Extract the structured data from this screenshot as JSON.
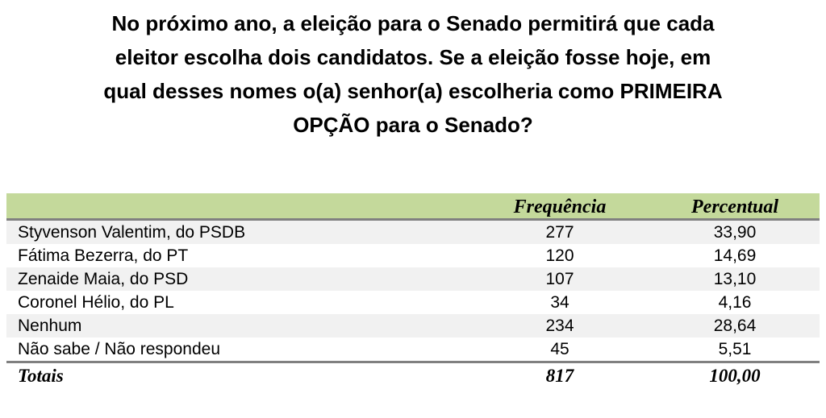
{
  "title_lines": [
    "No próximo ano, a eleição para o Senado permitirá que cada",
    "eleitor escolha dois candidatos. Se a eleição fosse hoje, em",
    "qual desses nomes o(a) senhor(a) escolheria como PRIMEIRA",
    "OPÇÃO para o Senado?"
  ],
  "table": {
    "headers": [
      "",
      "Frequência",
      "Percentual"
    ],
    "rows": [
      {
        "name": "Styvenson Valentim, do PSDB",
        "freq": "277",
        "pct": "33,90"
      },
      {
        "name": "Fátima Bezerra, do PT",
        "freq": "120",
        "pct": "14,69"
      },
      {
        "name": "Zenaide Maia, do PSD",
        "freq": "107",
        "pct": "13,10"
      },
      {
        "name": "Coronel Hélio, do PL",
        "freq": "34",
        "pct": "4,16"
      },
      {
        "name": "Nenhum",
        "freq": "234",
        "pct": "28,64"
      },
      {
        "name": "Não sabe / Não respondeu",
        "freq": "45",
        "pct": "5,51"
      }
    ],
    "total": {
      "name": "Totais",
      "freq": "817",
      "pct": "100,00"
    }
  },
  "colors": {
    "header_bg": "#c4d99b",
    "stripe_bg": "#f1f1f1",
    "rule": "#808080"
  }
}
